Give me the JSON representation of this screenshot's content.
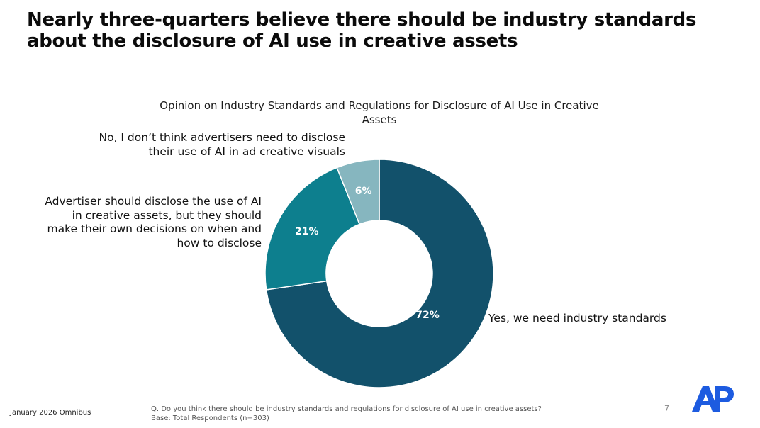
{
  "headline": "Nearly three-quarters believe there should be industry standards about the disclosure of AI use in creative assets",
  "colors": {
    "yes": "#12516b",
    "some": "#0d7f8e",
    "no": "#86b6bf",
    "brand": "#1d5be0"
  },
  "chart_data": {
    "type": "pie",
    "variant": "donut",
    "title": "Opinion on Industry Standards and Regulations for Disclosure of AI Use in Creative Assets",
    "slices": [
      {
        "name": "Yes, we need industry standards",
        "value": 72,
        "data_label": "72%",
        "color": "#12516b"
      },
      {
        "name": "Advertiser should disclose the use of AI in creative assets, but they should make their own decisions on when and how to disclose",
        "value": 21,
        "data_label": "21%",
        "color": "#0d7f8e"
      },
      {
        "name": "No, I don’t think advertisers need to disclose their use of AI in ad creative visuals",
        "value": 6,
        "data_label": "6%",
        "color": "#86b6bf"
      }
    ]
  },
  "footer": {
    "source": "January 2026 Omnibus",
    "question": "Q. Do you think there should be industry standards and regulations for disclosure of AI use in creative assets?",
    "base": "Base: Total Respondents (n=303)",
    "page_number": "7"
  },
  "logo": {
    "text": "AP"
  }
}
